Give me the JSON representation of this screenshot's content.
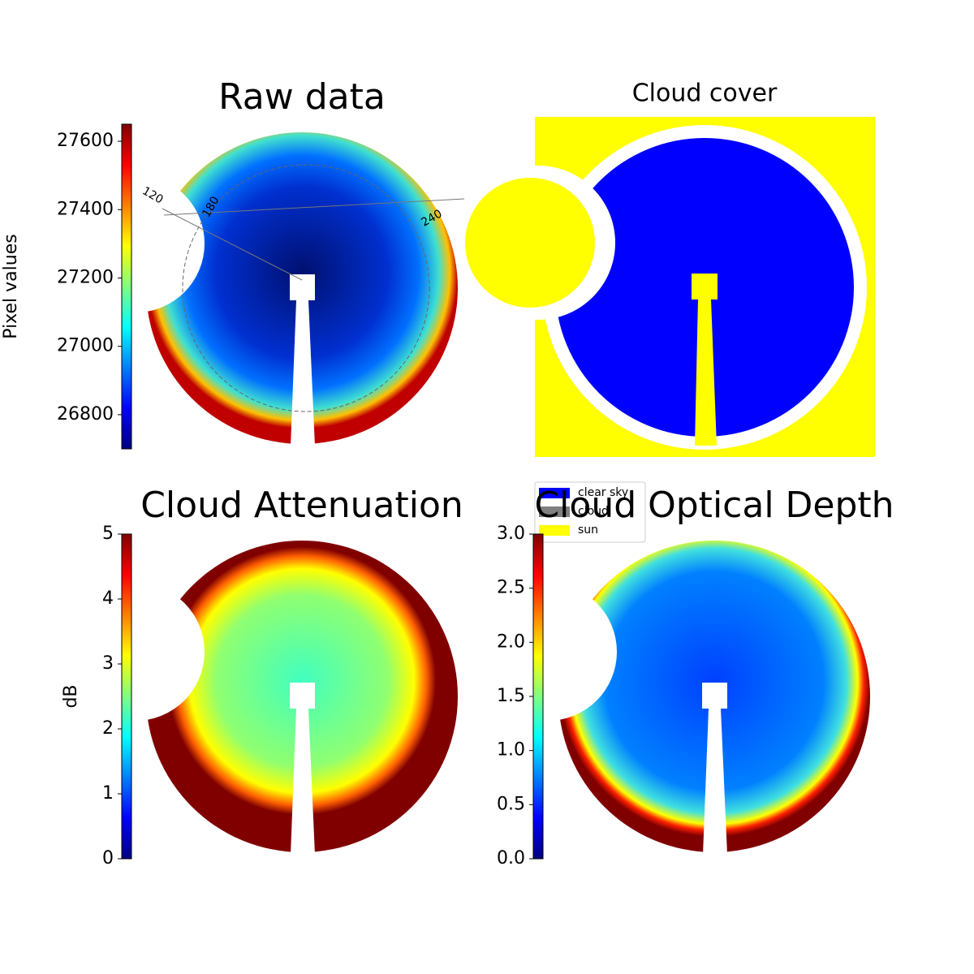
{
  "chart_data": [
    {
      "type": "image",
      "title": "Raw data",
      "colorbar": {
        "label": "Pixel values",
        "lim": [
          26700,
          27650
        ],
        "ticks": [
          26800,
          27000,
          27200,
          27400,
          27600
        ],
        "cmap": "jet"
      },
      "annotations": [
        "120",
        "180",
        "240"
      ]
    },
    {
      "type": "mask",
      "title": "Cloud cover",
      "legend": [
        {
          "name": "clear sky",
          "color": "#0000ff"
        },
        {
          "name": "cloud",
          "color": "#808080"
        },
        {
          "name": "sun",
          "color": "#ffff00"
        }
      ]
    },
    {
      "type": "image",
      "title": "Cloud Attenuation",
      "colorbar": {
        "label": "dB",
        "lim": [
          0,
          5
        ],
        "ticks": [
          0,
          1,
          2,
          3,
          4,
          5
        ],
        "cmap": "jet"
      }
    },
    {
      "type": "image",
      "title": "Cloud Optical Depth",
      "colorbar": {
        "lim": [
          0,
          3
        ],
        "ticks": [
          {
            "value": 0,
            "label": "0.0"
          },
          0.5,
          {
            "value": 1,
            "label": "1.0"
          },
          1.5,
          {
            "value": 2,
            "label": "2.0"
          },
          2.5,
          {
            "value": 3,
            "label": "3.0"
          }
        ],
        "cmap": "jet"
      }
    }
  ]
}
